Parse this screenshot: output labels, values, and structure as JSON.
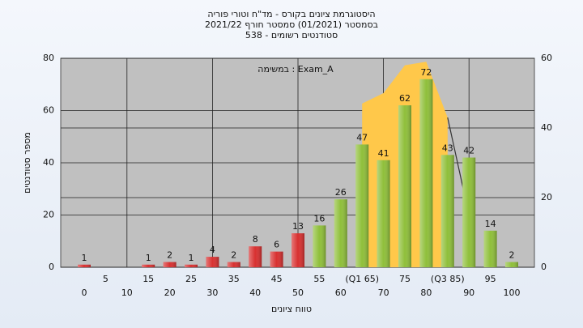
{
  "chart_data": {
    "type": "bar",
    "title": [
      "היסטוגרמת ציונים בקורס - מד\"ח וטורי פוריה",
      "בסמסטר  (01/2021)  סמסטר חורף 2021/22",
      "סטודנטים רשומים - 538"
    ],
    "annotation": "במשימה : Exam_A",
    "x_label": "טווח ציונים",
    "y_label": "מספר סטודנטים",
    "categories": [
      "0",
      "5",
      "10",
      "15",
      "20",
      "25",
      "30",
      "35",
      "40",
      "45",
      "50",
      "55",
      "60",
      "(Q1 65)",
      "70",
      "75",
      "80",
      "(Q3 85)",
      "90",
      "95",
      "100"
    ],
    "values": [
      1,
      null,
      null,
      1,
      2,
      1,
      4,
      2,
      8,
      6,
      13,
      16,
      26,
      47,
      41,
      62,
      72,
      43,
      42,
      14,
      2
    ],
    "bar_colors": [
      "#d83030",
      "#d83030",
      "#d83030",
      "#d83030",
      "#d83030",
      "#d83030",
      "#d83030",
      "#d83030",
      "#d83030",
      "#d83030",
      "#d83030",
      "#8fbf3a",
      "#8fbf3a",
      "#8fbf3a",
      "#8fbf3a",
      "#8fbf3a",
      "#8fbf3a",
      "#8fbf3a",
      "#8fbf3a",
      "#8fbf3a",
      "#8fbf3a"
    ],
    "area": {
      "color": "#ffc84a",
      "axis": "y2",
      "values": [
        null,
        null,
        null,
        null,
        null,
        null,
        null,
        null,
        null,
        null,
        null,
        null,
        null,
        47,
        50,
        58,
        59,
        43,
        null,
        null,
        null
      ]
    },
    "curve": {
      "color": "#333333",
      "axis": "y2",
      "values": [
        null,
        null,
        null,
        null,
        null,
        null,
        null,
        null,
        null,
        null,
        null,
        null,
        null,
        null,
        null,
        null,
        null,
        43,
        15,
        null,
        null
      ]
    },
    "ylim": [
      0,
      80
    ],
    "yticks": [
      0,
      20,
      40,
      60,
      80
    ],
    "y2lim": [
      0,
      60
    ],
    "y2ticks": [
      0,
      20,
      40,
      60
    ],
    "grid": true
  }
}
